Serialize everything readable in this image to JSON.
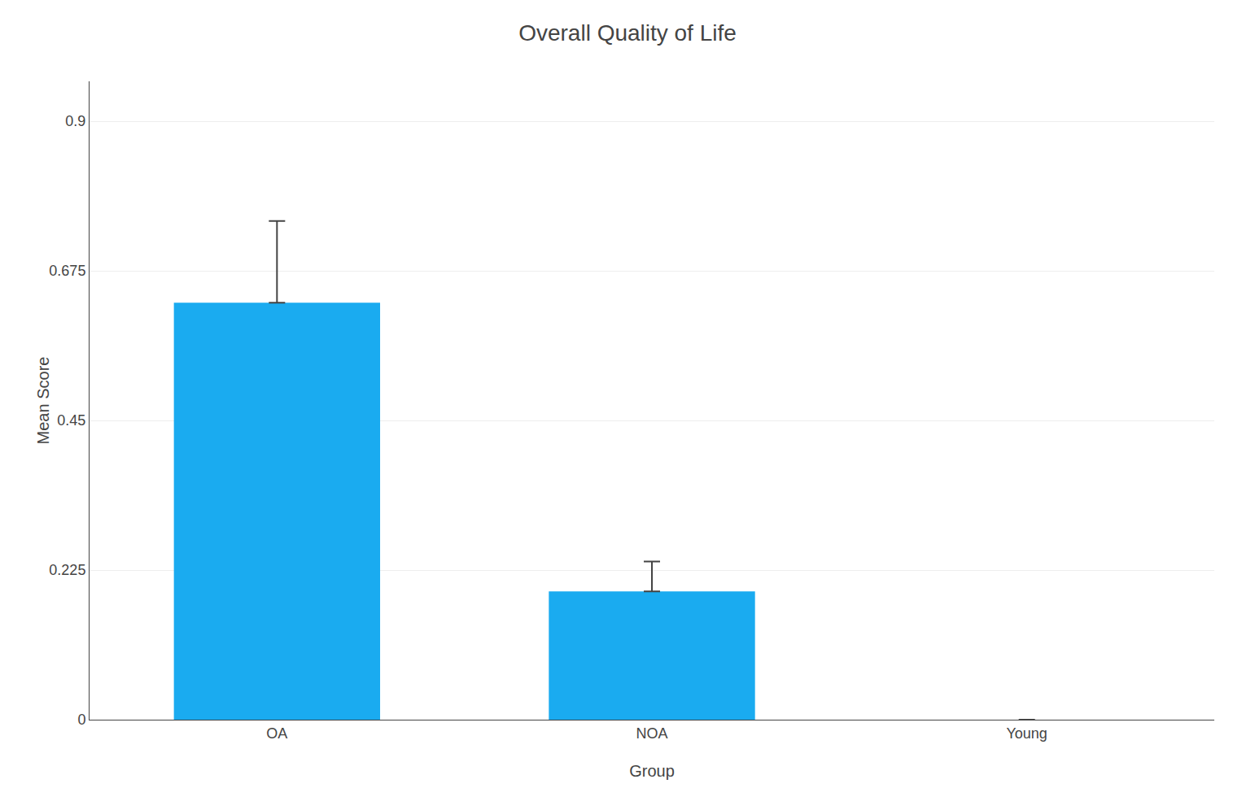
{
  "chart_data": {
    "type": "bar",
    "title": "Overall Quality of Life",
    "xlabel": "Group",
    "ylabel": "Mean Score",
    "categories": [
      "OA",
      "NOA",
      "Young"
    ],
    "values": [
      0.627,
      0.193,
      0.0
    ],
    "errors_up": [
      0.123,
      0.045,
      0.0
    ],
    "color": "#1AABF0",
    "ylim": [
      0,
      0.96
    ],
    "yticks": [
      0,
      0.225,
      0.45,
      0.675,
      0.9
    ],
    "grid": true
  }
}
